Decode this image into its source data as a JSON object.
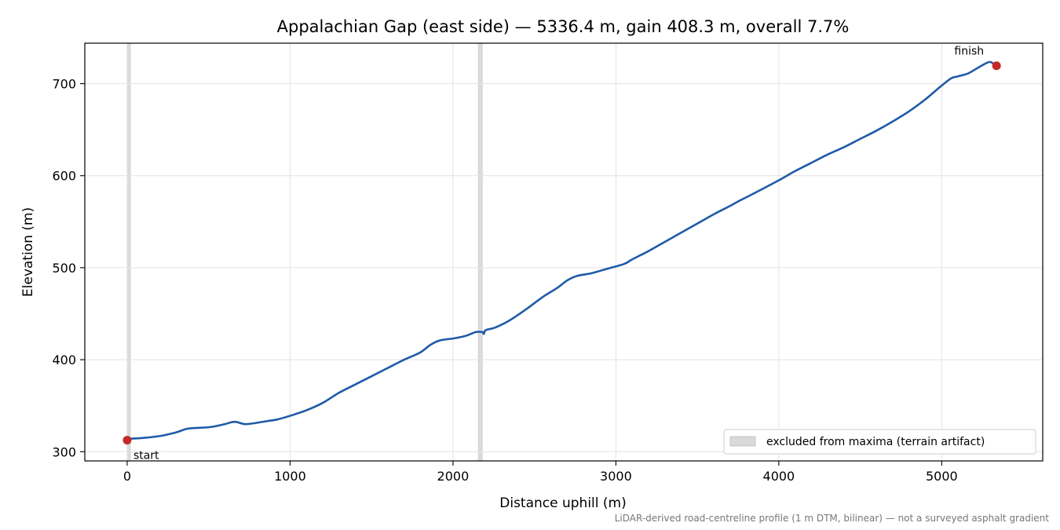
{
  "chart_data": {
    "type": "line",
    "title": "Appalachian Gap (east side) — 5336.4 m, gain 408.3 m, overall 7.7%",
    "xlabel": "Distance uphill (m)",
    "ylabel": "Elevation (m)",
    "xlim": [
      -260,
      5620
    ],
    "ylim": [
      290,
      744
    ],
    "x_ticks": [
      0,
      1000,
      2000,
      3000,
      4000,
      5000
    ],
    "y_ticks": [
      300,
      400,
      500,
      600,
      700
    ],
    "grid": true,
    "series": [
      {
        "color": "#1f5aa8",
        "points": [
          [
            0,
            314
          ],
          [
            100,
            315
          ],
          [
            200,
            317
          ],
          [
            300,
            321
          ],
          [
            370,
            325
          ],
          [
            450,
            326
          ],
          [
            520,
            327
          ],
          [
            600,
            330
          ],
          [
            660,
            332.5
          ],
          [
            720,
            330
          ],
          [
            780,
            331
          ],
          [
            850,
            333
          ],
          [
            920,
            335
          ],
          [
            1000,
            339
          ],
          [
            1100,
            345
          ],
          [
            1200,
            353
          ],
          [
            1300,
            364
          ],
          [
            1400,
            373
          ],
          [
            1500,
            382
          ],
          [
            1600,
            391
          ],
          [
            1700,
            400
          ],
          [
            1800,
            408
          ],
          [
            1860,
            416
          ],
          [
            1920,
            421
          ],
          [
            2000,
            423
          ],
          [
            2080,
            426
          ],
          [
            2140,
            430
          ],
          [
            2180,
            430
          ],
          [
            2190,
            428
          ],
          [
            2200,
            432
          ],
          [
            2260,
            435
          ],
          [
            2350,
            443
          ],
          [
            2450,
            455
          ],
          [
            2550,
            468
          ],
          [
            2640,
            478
          ],
          [
            2700,
            486
          ],
          [
            2760,
            491
          ],
          [
            2850,
            494
          ],
          [
            2950,
            499
          ],
          [
            3050,
            504
          ],
          [
            3100,
            509
          ],
          [
            3200,
            518
          ],
          [
            3300,
            528
          ],
          [
            3400,
            538
          ],
          [
            3500,
            548
          ],
          [
            3600,
            558
          ],
          [
            3700,
            567
          ],
          [
            3750,
            572
          ],
          [
            3850,
            581
          ],
          [
            4000,
            595
          ],
          [
            4100,
            605
          ],
          [
            4200,
            614
          ],
          [
            4300,
            623
          ],
          [
            4400,
            631
          ],
          [
            4500,
            640
          ],
          [
            4600,
            649
          ],
          [
            4700,
            659
          ],
          [
            4800,
            670
          ],
          [
            4900,
            683
          ],
          [
            5000,
            698
          ],
          [
            5060,
            706
          ],
          [
            5100,
            708
          ],
          [
            5160,
            711
          ],
          [
            5220,
            717
          ],
          [
            5270,
            722
          ],
          [
            5300,
            723.5
          ],
          [
            5336.4,
            719
          ]
        ]
      }
    ],
    "excluded_bands": [
      [
        0,
        20
      ],
      [
        2155,
        2180
      ]
    ],
    "markers": [
      {
        "label": "start",
        "x": 0,
        "y": 312.5,
        "color": "#c62828"
      },
      {
        "label": "finish",
        "x": 5336.4,
        "y": 719.5,
        "color": "#c62828"
      }
    ],
    "legend": {
      "position": "lower-right",
      "entries": [
        "excluded from maxima (terrain artifact)"
      ],
      "swatch_color": "#d9d9d9"
    },
    "caption": "LiDAR-derived road-centreline profile (1 m DTM, bilinear) — not a surveyed asphalt gradient"
  }
}
